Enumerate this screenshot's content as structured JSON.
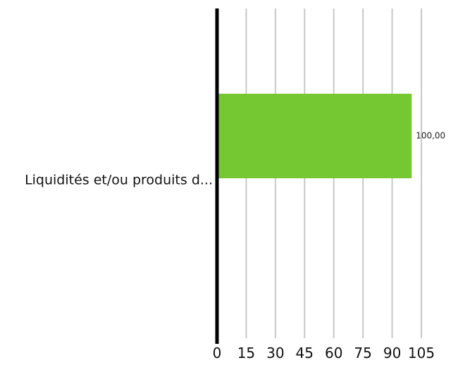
{
  "chart_data": {
    "type": "bar",
    "orientation": "horizontal",
    "categories": [
      "Liquidités et/ou produits d..."
    ],
    "values": [
      100
    ],
    "data_labels": [
      "100,00"
    ],
    "xlim": [
      0,
      105
    ],
    "xticks": [
      0,
      15,
      30,
      45,
      60,
      75,
      90,
      105
    ],
    "xtick_labels": [
      "0",
      "15",
      "30",
      "45",
      "60",
      "75",
      "90",
      "105"
    ],
    "grid": true,
    "legend": "none",
    "colors": {
      "bar": "#76c832",
      "axis": "#000000",
      "grid": "#c8c8c8"
    }
  }
}
